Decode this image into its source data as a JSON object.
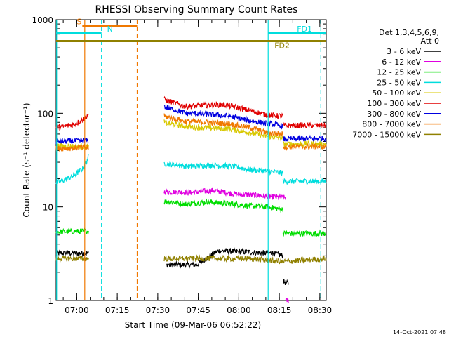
{
  "chart_data": {
    "type": "line",
    "title": "RHESSI Observing Summary Count Rates",
    "xlabel": "Start Time (09-Mar-06 06:52:22)",
    "ylabel": "Count Rate (s⁻¹ detector⁻¹)",
    "x_unit": "minutes after 06:52:22",
    "xlim": [
      0,
      100
    ],
    "ylim": [
      1,
      1000
    ],
    "y_scale": "log",
    "x_ticks": [
      {
        "x": 7.63,
        "label": "07:00"
      },
      {
        "x": 22.63,
        "label": "07:15"
      },
      {
        "x": 37.63,
        "label": "07:30"
      },
      {
        "x": 52.63,
        "label": "07:45"
      },
      {
        "x": 67.63,
        "label": "08:00"
      },
      {
        "x": 82.63,
        "label": "08:15"
      },
      {
        "x": 97.63,
        "label": "08:30"
      }
    ],
    "y_ticks": [
      {
        "y": 1,
        "label": "1"
      },
      {
        "y": 10,
        "label": "10"
      },
      {
        "y": 100,
        "label": "100"
      },
      {
        "y": 1000,
        "label": "1000"
      }
    ],
    "legend": {
      "title_lines": [
        "Det 1,3,4,5,6,9,",
        "Att 0"
      ],
      "placement": "right"
    },
    "series": [
      {
        "name": "3 - 6 keV",
        "color": "#000000",
        "segments": [
          [
            [
              0,
              3.2
            ],
            [
              12,
              3.2
            ]
          ],
          [
            [
              41,
              2.4
            ],
            [
              52,
              2.4
            ],
            [
              60,
              3.4
            ],
            [
              70,
              3.3
            ],
            [
              80,
              3.2
            ],
            [
              84,
              3.0
            ]
          ],
          [
            [
              84,
              1.6
            ],
            [
              86,
              1.5
            ]
          ],
          [
            [
              100,
              3.2
            ]
          ]
        ]
      },
      {
        "name": "6 - 12 keV",
        "color": "#e000e0",
        "segments": [
          [
            [
              40,
              14.5
            ],
            [
              50,
              14.2
            ],
            [
              58,
              15.0
            ],
            [
              66,
              13.8
            ],
            [
              74,
              13.3
            ],
            [
              80,
              12.8
            ],
            [
              85,
              12.5
            ]
          ],
          [
            [
              85,
              1.0
            ],
            [
              86,
              1.0
            ]
          ]
        ]
      },
      {
        "name": "12 - 25 keV",
        "color": "#00dd00",
        "segments": [
          [
            [
              0,
              5.4
            ],
            [
              12,
              5.5
            ]
          ],
          [
            [
              40,
              11.5
            ],
            [
              48,
              10.7
            ],
            [
              56,
              11.3
            ],
            [
              64,
              10.8
            ],
            [
              72,
              10.3
            ],
            [
              78,
              10.0
            ],
            [
              84,
              9.4
            ]
          ],
          [
            [
              84,
              5.2
            ],
            [
              100,
              5.2
            ]
          ]
        ]
      },
      {
        "name": "25 - 50 keV",
        "color": "#00dddd",
        "segments": [
          [
            [
              0,
              18
            ],
            [
              6,
              21
            ],
            [
              10,
              26
            ],
            [
              12,
              34
            ]
          ],
          [
            [
              40,
              29
            ],
            [
              50,
              27
            ],
            [
              58,
              28
            ],
            [
              66,
              27
            ],
            [
              72,
              25
            ],
            [
              78,
              24
            ],
            [
              84,
              23
            ]
          ],
          [
            [
              84,
              18.8
            ],
            [
              100,
              18.8
            ]
          ]
        ]
      },
      {
        "name": "50 - 100 keV",
        "color": "#d8c800",
        "segments": [
          [
            [
              0,
              45
            ],
            [
              12,
              44
            ]
          ],
          [
            [
              40,
              80
            ],
            [
              48,
              72
            ],
            [
              56,
              70
            ],
            [
              64,
              68
            ],
            [
              72,
              62
            ],
            [
              78,
              57
            ],
            [
              84,
              54
            ]
          ],
          [
            [
              84,
              47
            ],
            [
              100,
              47
            ]
          ]
        ]
      },
      {
        "name": "100 - 300 keV",
        "color": "#e00000",
        "segments": [
          [
            [
              0,
              70
            ],
            [
              6,
              75
            ],
            [
              10,
              85
            ],
            [
              12,
              98
            ]
          ],
          [
            [
              40,
              140
            ],
            [
              48,
              118
            ],
            [
              56,
              122
            ],
            [
              62,
              124
            ],
            [
              70,
              110
            ],
            [
              78,
              96
            ],
            [
              84,
              93
            ]
          ],
          [
            [
              84,
              74
            ],
            [
              100,
              74
            ]
          ]
        ]
      },
      {
        "name": "300 - 800 keV",
        "color": "#0000e0",
        "segments": [
          [
            [
              0,
              50
            ],
            [
              12,
              51
            ]
          ],
          [
            [
              40,
              118
            ],
            [
              48,
              100
            ],
            [
              56,
              98
            ],
            [
              64,
              93
            ],
            [
              72,
              83
            ],
            [
              78,
              78
            ],
            [
              84,
              73
            ]
          ],
          [
            [
              84,
              53
            ],
            [
              100,
              54
            ]
          ]
        ]
      },
      {
        "name": "800 - 7000 keV",
        "color": "#f07800",
        "segments": [
          [
            [
              0,
              42
            ],
            [
              12,
              43
            ]
          ],
          [
            [
              40,
              93
            ],
            [
              48,
              82
            ],
            [
              56,
              80
            ],
            [
              64,
              77
            ],
            [
              72,
              70
            ],
            [
              78,
              62
            ],
            [
              84,
              60
            ]
          ],
          [
            [
              84,
              44
            ],
            [
              100,
              44
            ]
          ]
        ]
      },
      {
        "name": "7000 - 15000 keV",
        "color": "#908000",
        "segments": [
          [
            [
              0,
              2.8
            ],
            [
              12,
              2.8
            ]
          ],
          [
            [
              40,
              2.8
            ],
            [
              60,
              2.8
            ],
            [
              72,
              2.8
            ],
            [
              84,
              2.6
            ]
          ],
          [
            [
              84,
              2.6
            ],
            [
              100,
              2.8
            ]
          ]
        ]
      }
    ],
    "annotations": {
      "bars": [
        {
          "label": "S",
          "x0": 9.7,
          "x1": 30,
          "y": 860,
          "color": "#f07800"
        },
        {
          "label": "N",
          "x0": 0,
          "x1": 16.8,
          "y": 720,
          "color": "#00dddd"
        },
        {
          "label": "FD1",
          "x0": 78.5,
          "x1": 100,
          "y": 720,
          "color": "#00dddd"
        },
        {
          "label": "FD2",
          "x0": 0,
          "x1": 100,
          "y": 590,
          "color": "#908000"
        }
      ],
      "vlines": [
        {
          "x": 10.6,
          "color": "#f07800",
          "dash": false
        },
        {
          "x": 16.8,
          "color": "#00dddd",
          "dash": true
        },
        {
          "x": 30.0,
          "color": "#f07800",
          "dash": true
        },
        {
          "x": 78.5,
          "color": "#00dddd",
          "dash": false
        },
        {
          "x": 98.0,
          "color": "#00dddd",
          "dash": true
        },
        {
          "x": 0.2,
          "color": "#00dddd",
          "dash": false
        }
      ]
    }
  },
  "footer": {
    "timestamp": "14-Oct-2021 07:48"
  }
}
